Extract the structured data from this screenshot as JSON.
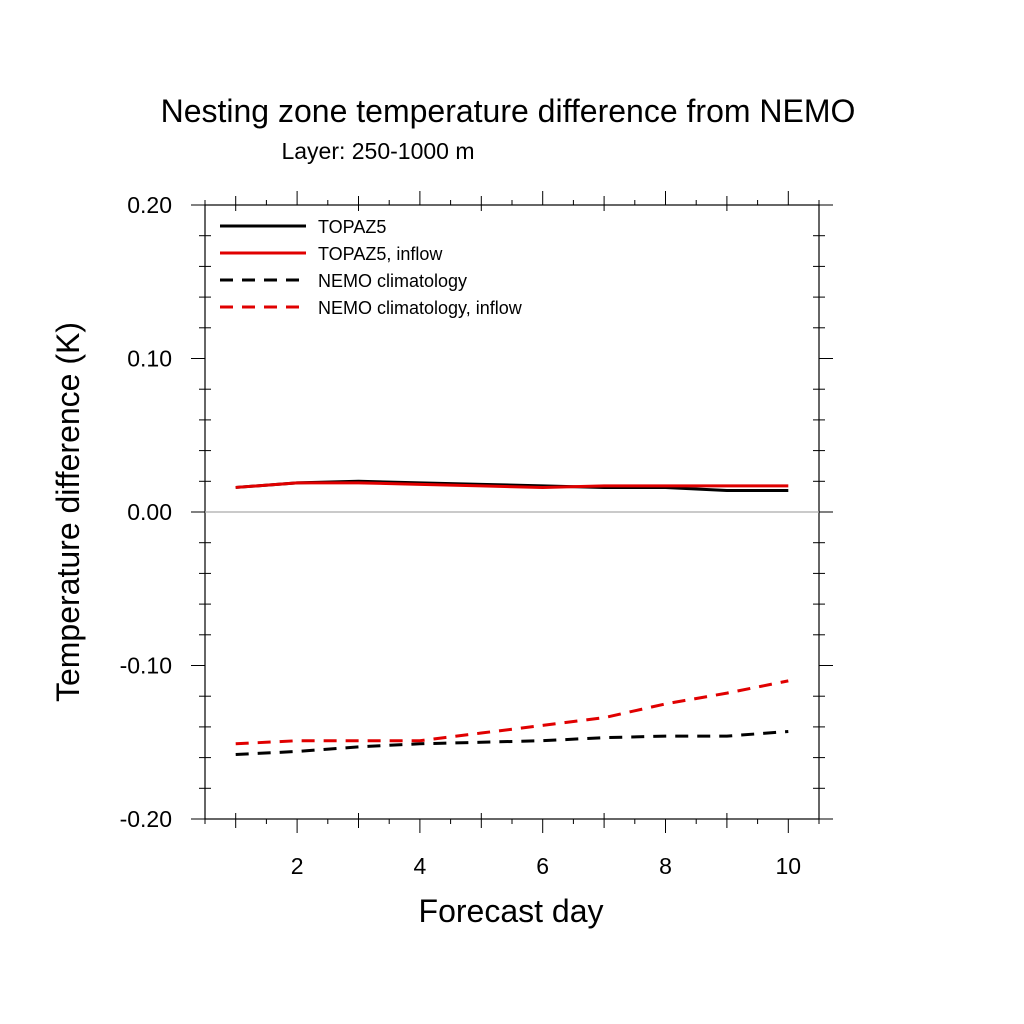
{
  "chart_data": {
    "type": "line",
    "title": "Nesting zone temperature difference from NEMO",
    "subtitle": "Layer: 250-1000 m",
    "xlabel": "Forecast day",
    "ylabel": "Temperature difference (K)",
    "xlim": [
      0.5,
      10.5
    ],
    "ylim": [
      -0.2,
      0.2
    ],
    "x_ticks": [
      2,
      4,
      6,
      8,
      10
    ],
    "x_tick_labels": [
      "2",
      "4",
      "6",
      "8",
      "10"
    ],
    "y_ticks": [
      -0.2,
      -0.1,
      0.0,
      0.1,
      0.2
    ],
    "y_tick_labels": [
      "-0.20",
      "-0.10",
      "0.00",
      "0.10",
      "0.20"
    ],
    "reference_line": 0.0,
    "grid": false,
    "legend_position": "top-left",
    "x": [
      1,
      2,
      3,
      4,
      5,
      6,
      7,
      8,
      9,
      10
    ],
    "series": [
      {
        "name": "TOPAZ5",
        "color": "#000000",
        "dash": "solid",
        "values": [
          0.016,
          0.019,
          0.02,
          0.019,
          0.018,
          0.017,
          0.016,
          0.016,
          0.014,
          0.014
        ]
      },
      {
        "name": "TOPAZ5, inflow",
        "color": "#e00000",
        "dash": "solid",
        "values": [
          0.016,
          0.019,
          0.019,
          0.018,
          0.017,
          0.016,
          0.017,
          0.017,
          0.017,
          0.017
        ]
      },
      {
        "name": "NEMO climatology",
        "color": "#000000",
        "dash": "dashed",
        "values": [
          -0.158,
          -0.156,
          -0.153,
          -0.151,
          -0.15,
          -0.149,
          -0.147,
          -0.146,
          -0.146,
          -0.143
        ]
      },
      {
        "name": "NEMO climatology, inflow",
        "color": "#e00000",
        "dash": "dashed",
        "values": [
          -0.151,
          -0.149,
          -0.149,
          -0.149,
          -0.144,
          -0.139,
          -0.134,
          -0.125,
          -0.118,
          -0.11
        ]
      }
    ]
  }
}
